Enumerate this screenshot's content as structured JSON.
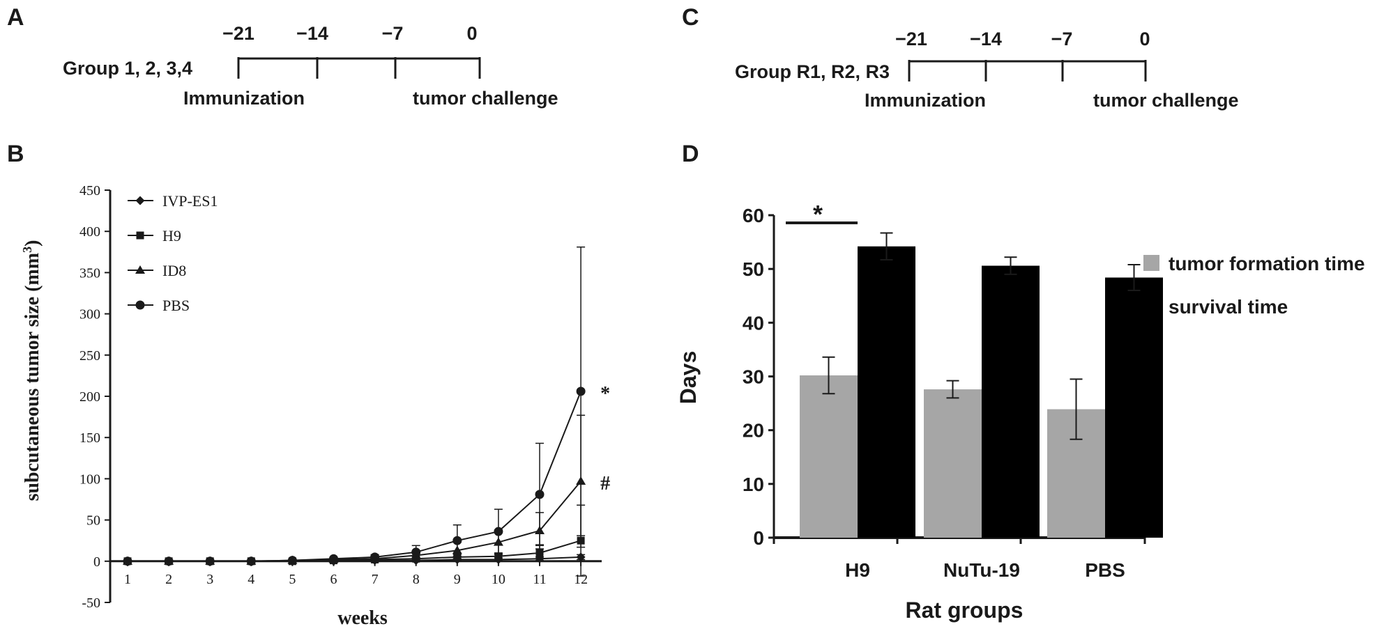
{
  "panels": {
    "a": "A",
    "b": "B",
    "c": "C",
    "d": "D"
  },
  "timeline_a": {
    "days": [
      "−21",
      "−14",
      "−7",
      "0"
    ],
    "group": "Group 1, 2, 3,4",
    "left_label": "Immunization",
    "right_label": "tumor challenge"
  },
  "timeline_c": {
    "days": [
      "−21",
      "−14",
      "−7",
      "0"
    ],
    "group": "Group R1, R2, R3",
    "left_label": "Immunization",
    "right_label": "tumor challenge"
  },
  "chart_data": [
    {
      "type": "line",
      "xlabel": "weeks",
      "ylabel": "subcutaneous tumor size (mm³)",
      "x": [
        1,
        2,
        3,
        4,
        5,
        6,
        7,
        8,
        9,
        10,
        11,
        12
      ],
      "ylim": [
        -50,
        450
      ],
      "yticks": [
        -50,
        0,
        50,
        100,
        150,
        200,
        250,
        300,
        350,
        400,
        450
      ],
      "legend_position": "top-left",
      "annotations": [
        {
          "text": "*",
          "series": "PBS"
        },
        {
          "text": "#",
          "series": "ID8"
        }
      ],
      "series": [
        {
          "name": "IVP-ES1",
          "marker": "diamond",
          "values": [
            0,
            0,
            0,
            0,
            0,
            0,
            1,
            1,
            2,
            2,
            3,
            5
          ],
          "errors": [
            0,
            0,
            0,
            0,
            0,
            0,
            1,
            1,
            1,
            2,
            2,
            3
          ]
        },
        {
          "name": "H9",
          "marker": "square",
          "values": [
            0,
            0,
            0,
            0,
            0,
            1,
            2,
            3,
            5,
            6,
            10,
            25
          ],
          "errors": [
            0,
            0,
            0,
            0,
            0,
            1,
            1,
            2,
            3,
            4,
            10,
            43
          ]
        },
        {
          "name": "ID8",
          "marker": "triangle",
          "values": [
            0,
            0,
            0,
            0,
            1,
            2,
            3,
            7,
            13,
            23,
            37,
            97
          ],
          "errors": [
            0,
            0,
            0,
            0,
            1,
            1,
            2,
            4,
            10,
            15,
            22,
            80
          ]
        },
        {
          "name": "PBS",
          "marker": "circle",
          "values": [
            0,
            0,
            0,
            0,
            1,
            3,
            5,
            11,
            25,
            36,
            81,
            206
          ],
          "errors": [
            0,
            0,
            0,
            0,
            1,
            2,
            3,
            8,
            19,
            27,
            62,
            175
          ]
        }
      ]
    },
    {
      "type": "bar",
      "categories": [
        "H9",
        "NuTu-19",
        "PBS"
      ],
      "xlabel": "Rat groups",
      "ylabel": "Days",
      "ylim": [
        0,
        60
      ],
      "yticks": [
        0,
        10,
        20,
        30,
        40,
        50,
        60
      ],
      "legend_position": "right",
      "significance": {
        "text": "*",
        "between": [
          "H9 tumor formation time",
          "H9 survival time"
        ]
      },
      "series": [
        {
          "name": "tumor formation time",
          "color": "#a6a6a6",
          "values": [
            30.2,
            27.6,
            23.9
          ],
          "errors": [
            3.4,
            1.6,
            5.6
          ]
        },
        {
          "name": "survival time",
          "color": "#000000",
          "values": [
            54.2,
            50.6,
            48.4
          ],
          "errors": [
            2.5,
            1.6,
            2.4
          ]
        }
      ]
    }
  ]
}
